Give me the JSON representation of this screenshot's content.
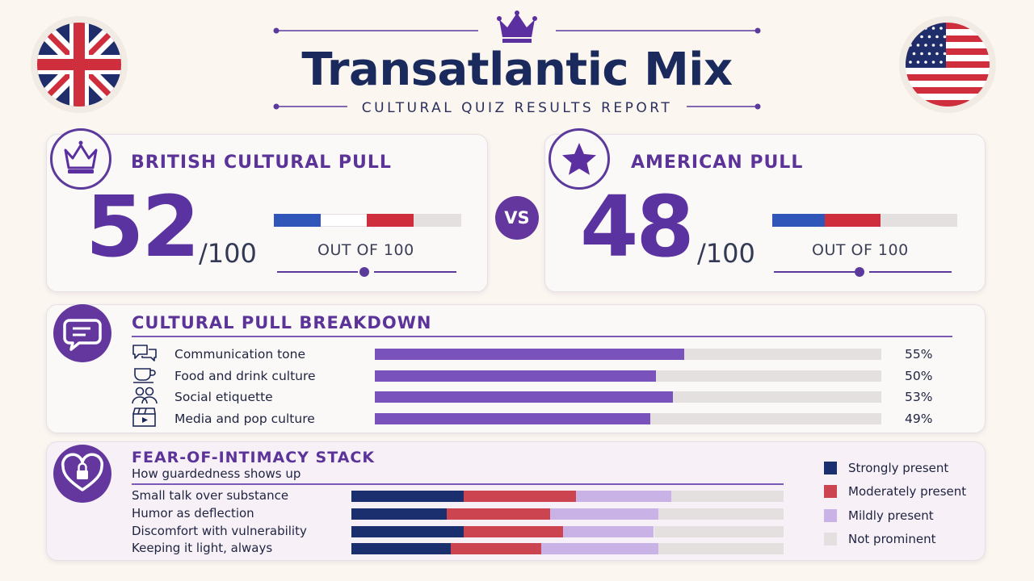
{
  "header": {
    "title": "Transatlantic Mix",
    "subtitle": "CULTURAL QUIZ RESULTS REPORT"
  },
  "colors": {
    "purple": "#5b3399",
    "navy": "#1b2f6e",
    "red": "#cc4450",
    "lavender": "#c9b3e6",
    "grey": "#e4e0df",
    "flag_blue": "#2f56b8",
    "flag_red": "#cf2e3c"
  },
  "icons": [
    "uk-flag-icon",
    "us-flag-icon",
    "crown-icon",
    "star-icon",
    "speech-bubble-icon",
    "heart-lock-icon",
    "chat-icon",
    "teacup-icon",
    "people-icon",
    "clapperboard-icon"
  ],
  "scores": {
    "british": {
      "heading": "BRITISH CULTURAL PULL",
      "value": "52",
      "suffix": "/100",
      "caption": "OUT OF 100"
    },
    "vs": "VS",
    "american": {
      "heading": "AMERICAN PULL",
      "value": "48",
      "suffix": "/100",
      "caption": "OUT OF 100"
    }
  },
  "chart_data": [
    {
      "type": "bar",
      "title": "CULTURAL PULL BREAKDOWN",
      "categories": [
        "Communication tone",
        "Food and drink culture",
        "Social etiquette",
        "Media and pop culture"
      ],
      "values": [
        55,
        50,
        53,
        49
      ],
      "value_labels": [
        "55%",
        "50%",
        "53%",
        "49%"
      ],
      "ylim": [
        0,
        90
      ],
      "orientation": "horizontal"
    },
    {
      "type": "bar",
      "stacked": true,
      "orientation": "horizontal",
      "title": "FEAR-OF-INTIMACY STACK",
      "subtitle": "How guardedness shows up",
      "categories": [
        "Small talk over substance",
        "Humor as deflection",
        "Discomfort with vulnerability",
        "Keeping it light, always"
      ],
      "series": [
        {
          "name": "Strongly present",
          "values": [
            26,
            22,
            26,
            23
          ]
        },
        {
          "name": "Moderately present",
          "values": [
            26,
            24,
            23,
            21
          ]
        },
        {
          "name": "Mildly present",
          "values": [
            22,
            25,
            21,
            27
          ]
        },
        {
          "name": "Not prominent",
          "values": [
            26,
            29,
            30,
            29
          ]
        }
      ],
      "legend": "right"
    }
  ]
}
